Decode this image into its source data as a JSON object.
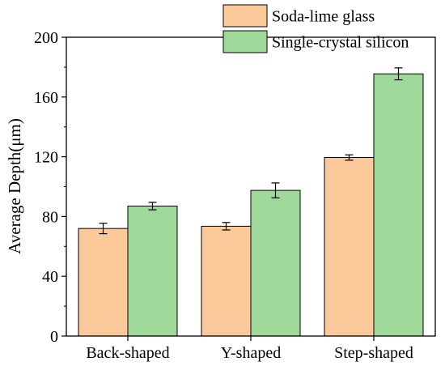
{
  "chart_data": {
    "type": "bar",
    "title": "",
    "xlabel": "",
    "ylabel": "Average Depth(μm)",
    "ylim": [
      0,
      200
    ],
    "yticks": [
      0,
      40,
      80,
      120,
      160,
      200
    ],
    "categories": [
      "Back-shaped",
      "Y-shaped",
      "Step-shaped"
    ],
    "series": [
      {
        "name": "Soda-lime glass",
        "color": "#fcc99b",
        "values": [
          72,
          73.5,
          119.5
        ],
        "errors": [
          3.5,
          2.5,
          1.8
        ]
      },
      {
        "name": "Single-crystal silicon",
        "color": "#9fd99a",
        "values": [
          87,
          97.5,
          175.5
        ],
        "errors": [
          2.5,
          5,
          4
        ]
      }
    ],
    "legend_position": "top-right",
    "grid": false
  }
}
